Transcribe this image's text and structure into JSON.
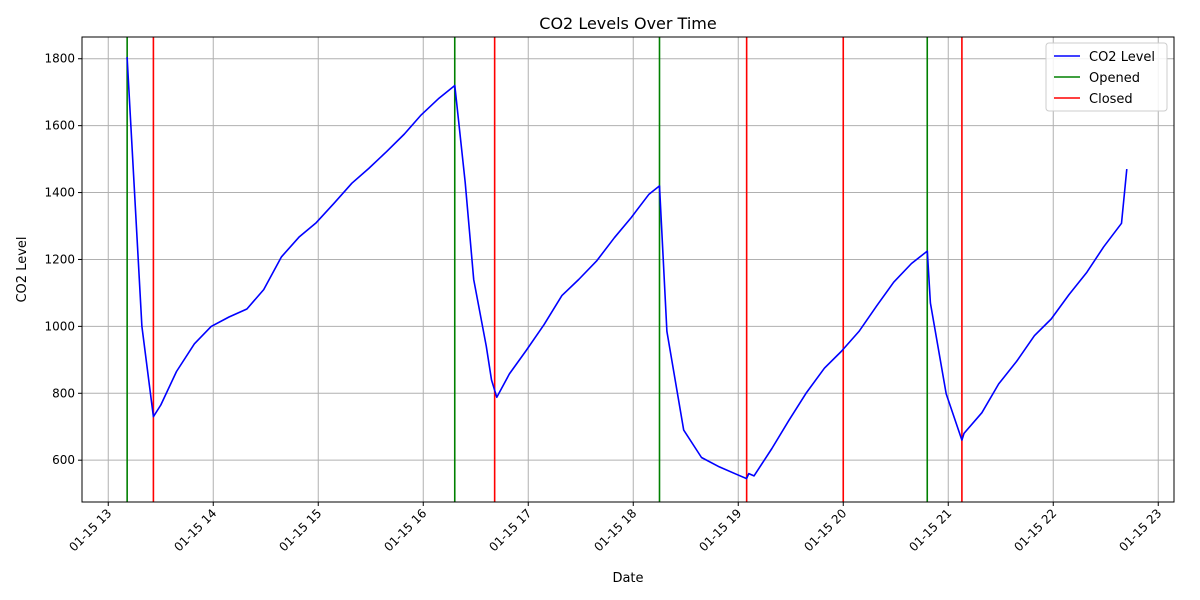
{
  "chart_data": {
    "type": "line",
    "title": "CO2 Levels Over Time",
    "xlabel": "Date",
    "ylabel": "CO2 Level",
    "grid": true,
    "legend_position": "top-right",
    "x_unit": "hours (clock time on 01-15)",
    "xlim": [
      12.75,
      23.15
    ],
    "ylim": [
      475,
      1865
    ],
    "x_ticks": [
      {
        "x": 13,
        "label": "01-15 13"
      },
      {
        "x": 14,
        "label": "01-15 14"
      },
      {
        "x": 15,
        "label": "01-15 15"
      },
      {
        "x": 16,
        "label": "01-15 16"
      },
      {
        "x": 17,
        "label": "01-15 17"
      },
      {
        "x": 18,
        "label": "01-15 18"
      },
      {
        "x": 19,
        "label": "01-15 19"
      },
      {
        "x": 20,
        "label": "01-15 20"
      },
      {
        "x": 21,
        "label": "01-15 21"
      },
      {
        "x": 22,
        "label": "01-15 22"
      },
      {
        "x": 23,
        "label": "01-15 23"
      }
    ],
    "y_ticks": [
      600,
      800,
      1000,
      1200,
      1400,
      1600,
      1800
    ],
    "series": [
      {
        "name": "CO2 Level",
        "color": "#0000ff",
        "points": [
          [
            13.18,
            1805
          ],
          [
            13.32,
            1000
          ],
          [
            13.43,
            730
          ],
          [
            13.5,
            765
          ],
          [
            13.65,
            865
          ],
          [
            13.82,
            948
          ],
          [
            13.98,
            1000
          ],
          [
            14.15,
            1028
          ],
          [
            14.32,
            1052
          ],
          [
            14.48,
            1110
          ],
          [
            14.65,
            1208
          ],
          [
            14.82,
            1268
          ],
          [
            14.98,
            1310
          ],
          [
            15.15,
            1368
          ],
          [
            15.32,
            1428
          ],
          [
            15.48,
            1472
          ],
          [
            15.65,
            1522
          ],
          [
            15.82,
            1575
          ],
          [
            15.98,
            1632
          ],
          [
            16.15,
            1682
          ],
          [
            16.3,
            1720
          ],
          [
            16.4,
            1430
          ],
          [
            16.48,
            1140
          ],
          [
            16.6,
            940
          ],
          [
            16.65,
            840
          ],
          [
            16.7,
            788
          ],
          [
            16.82,
            858
          ],
          [
            16.98,
            928
          ],
          [
            17.15,
            1005
          ],
          [
            17.32,
            1092
          ],
          [
            17.48,
            1140
          ],
          [
            17.65,
            1195
          ],
          [
            17.82,
            1265
          ],
          [
            17.98,
            1325
          ],
          [
            18.15,
            1395
          ],
          [
            18.25,
            1420
          ],
          [
            18.32,
            985
          ],
          [
            18.48,
            690
          ],
          [
            18.65,
            608
          ],
          [
            18.82,
            580
          ],
          [
            18.98,
            558
          ],
          [
            19.08,
            545
          ],
          [
            19.1,
            560
          ],
          [
            19.15,
            553
          ],
          [
            19.32,
            635
          ],
          [
            19.48,
            718
          ],
          [
            19.65,
            802
          ],
          [
            19.82,
            875
          ],
          [
            19.98,
            925
          ],
          [
            20.15,
            985
          ],
          [
            20.32,
            1062
          ],
          [
            20.48,
            1132
          ],
          [
            20.65,
            1188
          ],
          [
            20.8,
            1225
          ],
          [
            20.83,
            1070
          ],
          [
            20.98,
            798
          ],
          [
            21.13,
            660
          ],
          [
            21.15,
            680
          ],
          [
            21.32,
            742
          ],
          [
            21.48,
            828
          ],
          [
            21.65,
            895
          ],
          [
            21.82,
            972
          ],
          [
            21.98,
            1022
          ],
          [
            22.15,
            1095
          ],
          [
            22.32,
            1162
          ],
          [
            22.48,
            1238
          ],
          [
            22.65,
            1308
          ],
          [
            22.7,
            1470
          ]
        ]
      },
      {
        "name": "Opened",
        "color": "#008000",
        "vlines": [
          13.18,
          16.3,
          18.25,
          20.8
        ]
      },
      {
        "name": "Closed",
        "color": "#ff0000",
        "vlines": [
          13.43,
          16.68,
          19.08,
          20.0,
          21.13
        ]
      }
    ]
  }
}
